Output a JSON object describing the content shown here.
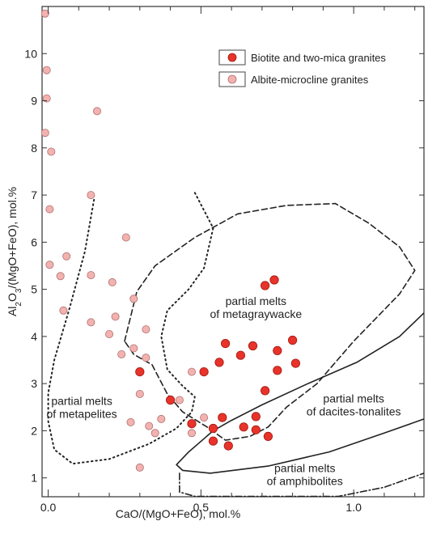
{
  "chart_data": {
    "type": "scatter",
    "xlabel": "CaO/(MgO+FeO), mol.%",
    "ylabel_parts": [
      "Al",
      "2",
      "O",
      "3",
      "/(MgO+FeO), mol.%"
    ],
    "xlim": [
      -0.02,
      1.23
    ],
    "ylim": [
      0.6,
      11.0
    ],
    "x_ticks": [
      {
        "value": 0.0,
        "label": "0.0"
      },
      {
        "value": 0.5,
        "label": "0.5"
      },
      {
        "value": 1.0,
        "label": "1.0"
      }
    ],
    "y_ticks": [
      {
        "value": 1,
        "label": "1"
      },
      {
        "value": 2,
        "label": "2"
      },
      {
        "value": 3,
        "label": "3"
      },
      {
        "value": 4,
        "label": "4"
      },
      {
        "value": 5,
        "label": "5"
      },
      {
        "value": 6,
        "label": "6"
      },
      {
        "value": 7,
        "label": "7"
      },
      {
        "value": 8,
        "label": "8"
      },
      {
        "value": 9,
        "label": "9"
      },
      {
        "value": 10,
        "label": "10"
      }
    ],
    "x_minor_step": 0.1,
    "legend_position": "top-right",
    "series": [
      {
        "name": "Biotite and two-mica granites",
        "color": "#e8332a",
        "stroke": "#a01810",
        "points": [
          {
            "x": 0.3,
            "y": 3.25
          },
          {
            "x": 0.4,
            "y": 2.65
          },
          {
            "x": 0.47,
            "y": 2.15
          },
          {
            "x": 0.51,
            "y": 3.25
          },
          {
            "x": 0.56,
            "y": 3.45
          },
          {
            "x": 0.58,
            "y": 3.85
          },
          {
            "x": 0.63,
            "y": 3.6
          },
          {
            "x": 0.67,
            "y": 3.8
          },
          {
            "x": 0.71,
            "y": 5.08
          },
          {
            "x": 0.74,
            "y": 5.2
          },
          {
            "x": 0.75,
            "y": 3.7
          },
          {
            "x": 0.8,
            "y": 3.92
          },
          {
            "x": 0.81,
            "y": 3.43
          },
          {
            "x": 0.75,
            "y": 3.28
          },
          {
            "x": 0.71,
            "y": 2.85
          },
          {
            "x": 0.57,
            "y": 2.28
          },
          {
            "x": 0.54,
            "y": 2.05
          },
          {
            "x": 0.64,
            "y": 2.08
          },
          {
            "x": 0.68,
            "y": 2.3
          },
          {
            "x": 0.68,
            "y": 2.02
          },
          {
            "x": 0.72,
            "y": 1.88
          },
          {
            "x": 0.54,
            "y": 1.78
          },
          {
            "x": 0.59,
            "y": 1.68
          }
        ]
      },
      {
        "name": "Albite-microcline granites",
        "color": "#f2b2b0",
        "stroke": "#b07070",
        "points": [
          {
            "x": -0.01,
            "y": 10.85
          },
          {
            "x": -0.005,
            "y": 9.65
          },
          {
            "x": -0.005,
            "y": 9.05
          },
          {
            "x": -0.01,
            "y": 8.32
          },
          {
            "x": 0.01,
            "y": 7.92
          },
          {
            "x": 0.16,
            "y": 8.78
          },
          {
            "x": 0.005,
            "y": 6.7
          },
          {
            "x": 0.14,
            "y": 7.0
          },
          {
            "x": 0.255,
            "y": 6.1
          },
          {
            "x": 0.005,
            "y": 5.52
          },
          {
            "x": 0.06,
            "y": 5.7
          },
          {
            "x": 0.04,
            "y": 5.28
          },
          {
            "x": 0.14,
            "y": 5.3
          },
          {
            "x": 0.21,
            "y": 5.15
          },
          {
            "x": 0.05,
            "y": 4.55
          },
          {
            "x": 0.14,
            "y": 4.3
          },
          {
            "x": 0.22,
            "y": 4.42
          },
          {
            "x": 0.28,
            "y": 4.8
          },
          {
            "x": 0.2,
            "y": 4.05
          },
          {
            "x": 0.32,
            "y": 4.15
          },
          {
            "x": 0.24,
            "y": 3.62
          },
          {
            "x": 0.28,
            "y": 3.75
          },
          {
            "x": 0.32,
            "y": 3.55
          },
          {
            "x": 0.47,
            "y": 3.25
          },
          {
            "x": 0.3,
            "y": 2.78
          },
          {
            "x": 0.43,
            "y": 2.65
          },
          {
            "x": 0.37,
            "y": 2.25
          },
          {
            "x": 0.27,
            "y": 2.18
          },
          {
            "x": 0.33,
            "y": 2.1
          },
          {
            "x": 0.35,
            "y": 1.95
          },
          {
            "x": 0.47,
            "y": 1.95
          },
          {
            "x": 0.51,
            "y": 2.28
          },
          {
            "x": 0.3,
            "y": 1.22
          }
        ]
      }
    ],
    "regions": [
      {
        "name": "metapelites",
        "style": "dotted",
        "closed": false,
        "label": [
          "partial melts",
          "of metapelites"
        ],
        "label_anchor": {
          "x": 0.11,
          "y": 2.55
        },
        "points": [
          [
            0.15,
            6.9
          ],
          [
            0.12,
            5.8
          ],
          [
            0.07,
            4.6
          ],
          [
            0.02,
            3.5
          ],
          [
            0.0,
            2.8
          ],
          [
            0.0,
            2.2
          ],
          [
            0.02,
            1.6
          ],
          [
            0.08,
            1.3
          ],
          [
            0.2,
            1.4
          ],
          [
            0.33,
            1.72
          ],
          [
            0.42,
            2.05
          ],
          [
            0.47,
            2.4
          ],
          [
            0.48,
            2.72
          ],
          [
            0.44,
            2.95
          ],
          [
            0.39,
            3.3
          ],
          [
            0.37,
            4.0
          ],
          [
            0.39,
            4.55
          ],
          [
            0.46,
            5.0
          ],
          [
            0.51,
            5.45
          ],
          [
            0.54,
            6.3
          ],
          [
            0.48,
            7.05
          ]
        ]
      },
      {
        "name": "metagraywacke",
        "style": "dashed",
        "closed": true,
        "label": [
          "partial melts",
          "of metagraywacke"
        ],
        "label_anchor": {
          "x": 0.68,
          "y": 4.67
        },
        "points": [
          [
            0.25,
            3.9
          ],
          [
            0.29,
            4.95
          ],
          [
            0.35,
            5.5
          ],
          [
            0.48,
            6.1
          ],
          [
            0.62,
            6.6
          ],
          [
            0.78,
            6.78
          ],
          [
            0.94,
            6.82
          ],
          [
            1.05,
            6.4
          ],
          [
            1.15,
            5.9
          ],
          [
            1.2,
            5.4
          ],
          [
            1.15,
            4.9
          ],
          [
            1.0,
            3.9
          ],
          [
            0.88,
            3.0
          ],
          [
            0.78,
            2.5
          ],
          [
            0.72,
            2.08
          ],
          [
            0.66,
            1.88
          ],
          [
            0.58,
            1.8
          ],
          [
            0.52,
            2.08
          ],
          [
            0.44,
            2.4
          ],
          [
            0.39,
            2.78
          ],
          [
            0.34,
            3.4
          ],
          [
            0.28,
            3.62
          ]
        ]
      },
      {
        "name": "dacites-tonalites",
        "style": "solid",
        "closed": false,
        "label": [
          "partial melts",
          "of dacites-tonalites"
        ],
        "label_anchor": {
          "x": 1.0,
          "y": 2.6
        },
        "points": [
          [
            1.23,
            4.5
          ],
          [
            1.15,
            4.0
          ],
          [
            1.01,
            3.45
          ],
          [
            0.85,
            3.0
          ],
          [
            0.7,
            2.55
          ],
          [
            0.6,
            2.22
          ],
          [
            0.54,
            2.0
          ],
          [
            0.46,
            1.55
          ],
          [
            0.42,
            1.28
          ],
          [
            0.44,
            1.16
          ],
          [
            0.53,
            1.1
          ],
          [
            0.72,
            1.25
          ],
          [
            0.92,
            1.55
          ],
          [
            1.1,
            1.95
          ],
          [
            1.23,
            2.25
          ]
        ]
      },
      {
        "name": "amphibolites",
        "style": "dashdot",
        "closed": false,
        "label": [
          "partial melts",
          "of amphibolites"
        ],
        "label_anchor": {
          "x": 0.84,
          "y": 1.12
        },
        "points": [
          [
            0.43,
            1.1
          ],
          [
            0.43,
            0.7
          ],
          [
            0.48,
            0.45
          ],
          [
            0.55,
            0.38
          ],
          [
            0.75,
            0.38
          ],
          [
            0.95,
            0.55
          ],
          [
            1.1,
            0.8
          ],
          [
            1.23,
            1.1
          ]
        ]
      }
    ]
  }
}
